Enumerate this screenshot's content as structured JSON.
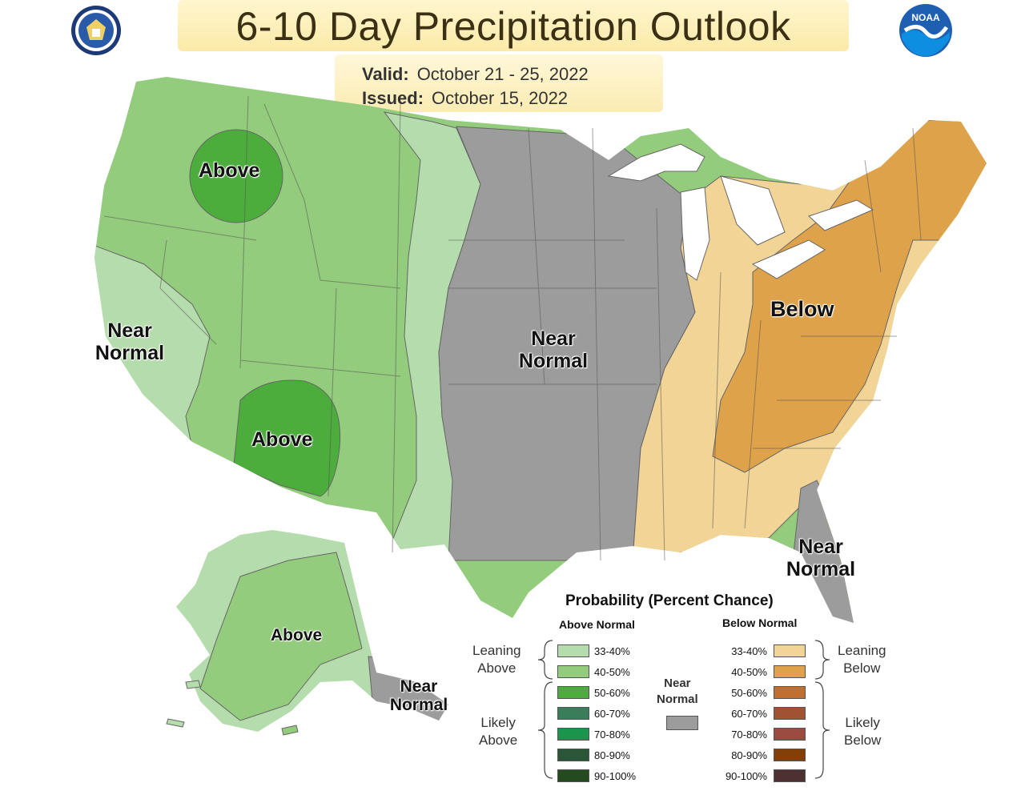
{
  "header": {
    "title": "6-10 Day Precipitation Outlook",
    "valid_label": "Valid:",
    "valid_value": "October 21 - 25, 2022",
    "issued_label": "Issued:",
    "issued_value": "October 15, 2022"
  },
  "logos": {
    "left": "commerce-seal-icon",
    "right": "noaa-logo-icon",
    "right_text": "NOAA"
  },
  "map_labels": {
    "nw_above": "Above",
    "sw_above": "Above",
    "ca_near_1": "Near",
    "ca_near_2": "Normal",
    "central_near_1": "Near",
    "central_near_2": "Normal",
    "below": "Below",
    "fl_near_1": "Near",
    "fl_near_2": "Normal",
    "ak_above": "Above",
    "ak_near_1": "Near",
    "ak_near_2": "Normal"
  },
  "colors": {
    "above_33_40": "#b5dcac",
    "above_40_50": "#93cc7c",
    "above_50_60": "#4cac3c",
    "above_60_70": "#3a7d5a",
    "above_70_80": "#1b944c",
    "above_80_90": "#2b5638",
    "above_90_100": "#244a20",
    "below_33_40": "#f2d496",
    "below_40_50": "#dea24b",
    "below_50_60": "#c06f31",
    "below_60_70": "#a15233",
    "below_70_80": "#9c4b41",
    "below_80_90": "#833f08",
    "below_90_100": "#4f3030",
    "near_normal": "#9c9c9c",
    "lakes": "#ffffff"
  },
  "legend": {
    "title": "Probability (Percent Chance)",
    "above_head": "Above Normal",
    "below_head": "Below Normal",
    "near_1": "Near",
    "near_2": "Normal",
    "above_rows": [
      "33-40%",
      "40-50%",
      "50-60%",
      "60-70%",
      "70-80%",
      "80-90%",
      "90-100%"
    ],
    "below_rows": [
      "33-40%",
      "40-50%",
      "50-60%",
      "60-70%",
      "70-80%",
      "80-90%",
      "90-100%"
    ],
    "leaning_above_1": "Leaning",
    "leaning_above_2": "Above",
    "likely_above_1": "Likely",
    "likely_above_2": "Above",
    "leaning_below_1": "Leaning",
    "leaning_below_2": "Below",
    "likely_below_1": "Likely",
    "likely_below_2": "Below"
  }
}
